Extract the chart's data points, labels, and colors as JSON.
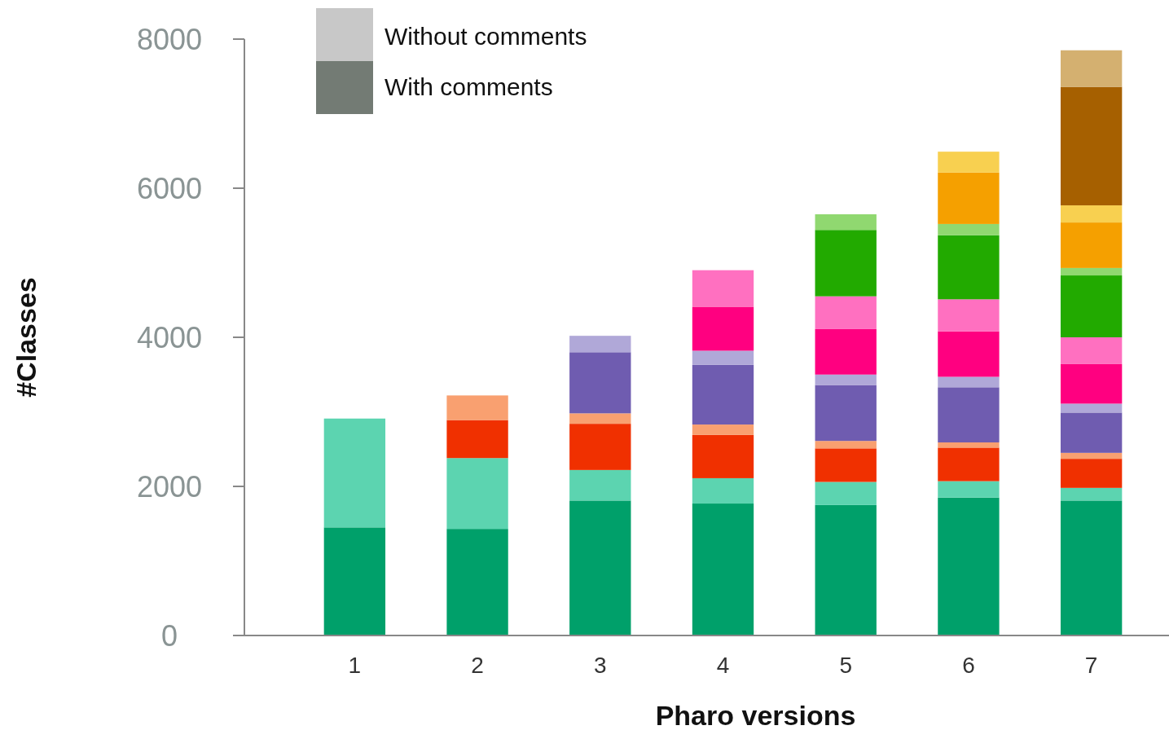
{
  "chart_data": {
    "type": "bar",
    "stacked": true,
    "xlabel": "Pharo versions",
    "ylabel": "#Classes",
    "categories": [
      "1",
      "2",
      "3",
      "4",
      "5",
      "6",
      "7"
    ],
    "ylim": [
      0,
      8000
    ],
    "yticks": [
      0,
      2000,
      4000,
      6000,
      8000
    ],
    "grid": false,
    "annotations": [
      "Without comments",
      "With comments"
    ],
    "series": [
      {
        "color": "#00a06a",
        "values": [
          1450,
          1430,
          1810,
          1770,
          1750,
          1850,
          1810
        ]
      },
      {
        "color": "#5cd4b0",
        "values": [
          1460,
          950,
          410,
          340,
          310,
          220,
          170
        ]
      },
      {
        "color": "#f03000",
        "values": [
          null,
          510,
          620,
          580,
          450,
          450,
          390
        ]
      },
      {
        "color": "#f9a070",
        "values": [
          null,
          330,
          140,
          140,
          100,
          70,
          80
        ]
      },
      {
        "color": "#6f5cb0",
        "values": [
          null,
          null,
          820,
          800,
          750,
          740,
          540
        ]
      },
      {
        "color": "#b0a8d8",
        "values": [
          null,
          null,
          220,
          190,
          140,
          140,
          120
        ]
      },
      {
        "color": "#ff0080",
        "values": [
          null,
          null,
          null,
          590,
          610,
          610,
          530
        ]
      },
      {
        "color": "#ff70c0",
        "values": [
          null,
          null,
          null,
          490,
          440,
          430,
          360
        ]
      },
      {
        "color": "#22aa00",
        "values": [
          null,
          null,
          null,
          null,
          890,
          860,
          830
        ]
      },
      {
        "color": "#90d870",
        "values": [
          null,
          null,
          null,
          null,
          210,
          150,
          100
        ]
      },
      {
        "color": "#f5a000",
        "values": [
          null,
          null,
          null,
          null,
          null,
          690,
          610
        ]
      },
      {
        "color": "#f8d050",
        "values": [
          null,
          null,
          null,
          null,
          null,
          280,
          230
        ]
      },
      {
        "color": "#a66000",
        "values": [
          null,
          null,
          null,
          null,
          null,
          null,
          1590
        ]
      },
      {
        "color": "#d4b070",
        "values": [
          null,
          null,
          null,
          null,
          null,
          null,
          490
        ]
      }
    ]
  }
}
